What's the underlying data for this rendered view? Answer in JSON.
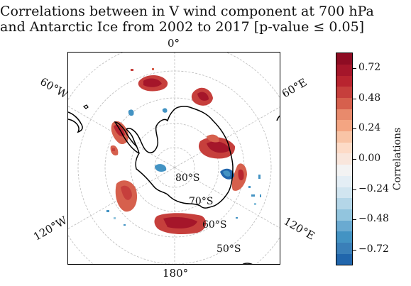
{
  "title": {
    "line1": "Correlations between in V wind component at 700 hPa",
    "line2": "and Antarctic Ice from 2002 to 2017 [p-value ≤ 0.05]"
  },
  "map": {
    "projection": "south-polar-stereographic",
    "lon_labels": {
      "top": "0°",
      "bottom": "180°",
      "upper_left": "60°W",
      "upper_right": "60°E",
      "lower_left": "120°W",
      "lower_right": "120°E"
    },
    "lat_labels": [
      "80°S",
      "70°S",
      "60°S",
      "50°S"
    ],
    "colors": {
      "strong_positive": "#b2182b",
      "positive": "#d6604d",
      "weak_positive": "#f4a582",
      "negative": "#4393c3",
      "weak_negative": "#92c5de",
      "coast": "#000000",
      "grid": "#bbbbbb"
    }
  },
  "colorbar": {
    "label": "Correlations",
    "ticks": [
      "0.72",
      "0.48",
      "0.24",
      "0.00",
      "−0.24",
      "−0.48",
      "−0.72"
    ],
    "range": [
      -0.84,
      0.84
    ],
    "colors": [
      "#2166ac",
      "#3a7fb8",
      "#4393c3",
      "#6aaad1",
      "#92c5de",
      "#b4d6e8",
      "#d1e5f0",
      "#e4eef5",
      "#f3f3f3",
      "#f9e6dc",
      "#fddbc7",
      "#f9c4a6",
      "#f4a582",
      "#e88a6c",
      "#d6604d",
      "#c63f3c",
      "#b8242f",
      "#a5162a",
      "#8e0c23"
    ]
  }
}
